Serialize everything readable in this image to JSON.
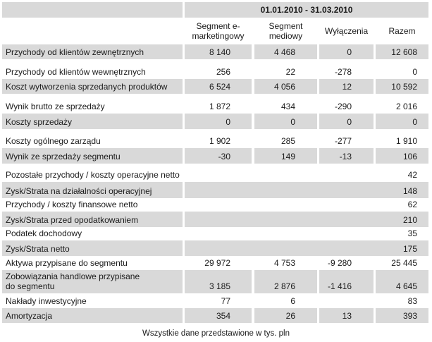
{
  "period": "01.01.2010 - 31.03.2010",
  "columns": [
    "Segment e-marketingowy",
    "Segment mediowy",
    "Wyłączenia",
    "Razem"
  ],
  "rows": [
    {
      "label": "Przychody od klientów zewnętrznych",
      "values": [
        "8 140",
        "4 468",
        "0",
        "12 608"
      ]
    },
    {
      "label": "Przychody od klientów wewnętrznych",
      "values": [
        "256",
        "22",
        "-278",
        "0"
      ]
    },
    {
      "label": "Koszt wytworzenia sprzedanych produktów",
      "values": [
        "6 524",
        "4 056",
        "12",
        "10 592"
      ]
    },
    {
      "label": "Wynik brutto ze sprzedaży",
      "values": [
        "1 872",
        "434",
        "-290",
        "2 016"
      ]
    },
    {
      "label": "Koszty sprzedaży",
      "values": [
        "0",
        "0",
        "0",
        "0"
      ]
    },
    {
      "label": "Koszty ogólnego zarządu",
      "values": [
        "1 902",
        "285",
        "-277",
        "1 910"
      ]
    },
    {
      "label": "Wynik ze sprzedaży segmentu",
      "values": [
        "-30",
        "149",
        "-13",
        "106"
      ]
    },
    {
      "label": "Pozostałe przychody / koszty operacyjne netto",
      "total": "42"
    },
    {
      "label": "Zysk/Strata na działalności operacyjnej",
      "total": "148"
    },
    {
      "label": "Przychody / koszty finansowe netto",
      "total": "62"
    },
    {
      "label": "Zysk/Strata przed opodatkowaniem",
      "total": "210"
    },
    {
      "label": "Podatek dochodowy",
      "total": "35"
    },
    {
      "label": "Zysk/Strata netto",
      "total": "175"
    },
    {
      "label": "Aktywa przypisane do segmentu",
      "values": [
        "29 972",
        "4 753",
        "-9 280",
        "25 445"
      ]
    },
    {
      "label": "Zobowiązania handlowe przypisane do segmentu",
      "values": [
        "3 185",
        "2 876",
        "-1 416",
        "4 645"
      ]
    },
    {
      "label": "Nakłady inwestycyjne",
      "values": [
        "77",
        "6",
        "",
        "83"
      ]
    },
    {
      "label": "Amortyzacja",
      "values": [
        "354",
        "26",
        "13",
        "393"
      ]
    }
  ],
  "footnote": "Wszystkie dane przedstawione w tys. pln",
  "colors": {
    "shade": "#d9d9d9"
  }
}
